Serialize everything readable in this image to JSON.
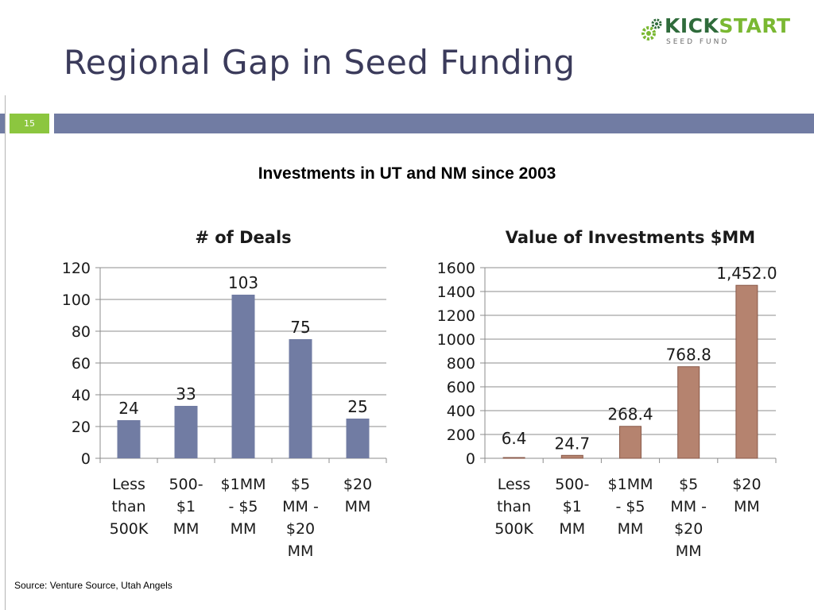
{
  "header": {
    "title": "Regional Gap in Seed Funding",
    "slide_number": "15",
    "logo_text_dark": "KICK",
    "logo_text_light": "START",
    "logo_subtext": "SEED FUND"
  },
  "subtitle": "Investments in UT and NM since 2003",
  "source": "Source: Venture Source, Utah Angels",
  "colors": {
    "deals_bar": "#717ca3",
    "value_bar": "#b5836f",
    "band": "#717ca3",
    "slide_number_bg": "#8cc63f"
  },
  "chart_data": [
    {
      "type": "bar",
      "title": "# of Deals",
      "categories": [
        [
          "Less",
          "than",
          "500K"
        ],
        [
          "500-",
          "$1",
          "MM"
        ],
        [
          "$1MM",
          "- $5",
          "MM"
        ],
        [
          "$5",
          "MM -",
          "$20",
          "MM"
        ],
        [
          "$20",
          "MM"
        ]
      ],
      "values": [
        24,
        33,
        103,
        75,
        25
      ],
      "data_labels": [
        "24",
        "33",
        "103",
        "75",
        "25"
      ],
      "ylim": [
        0,
        120
      ],
      "yticks": [
        0,
        20,
        40,
        60,
        80,
        100,
        120
      ],
      "ytick_labels": [
        "0",
        "20",
        "40",
        "60",
        "80",
        "100",
        "120"
      ],
      "grid": true,
      "xlabel": "",
      "ylabel": ""
    },
    {
      "type": "bar",
      "title": "Value of Investments $MM",
      "categories": [
        [
          "Less",
          "than",
          "500K"
        ],
        [
          "500-",
          "$1",
          "MM"
        ],
        [
          "$1MM",
          "- $5",
          "MM"
        ],
        [
          "$5",
          "MM -",
          "$20",
          "MM"
        ],
        [
          "$20",
          "MM"
        ]
      ],
      "values": [
        6.4,
        24.7,
        268.4,
        768.8,
        1452.0
      ],
      "data_labels": [
        "6.4",
        "24.7",
        "268.4",
        "768.8",
        "1,452.0"
      ],
      "ylim": [
        0,
        1600
      ],
      "yticks": [
        0,
        200,
        400,
        600,
        800,
        1000,
        1200,
        1400,
        1600
      ],
      "ytick_labels": [
        "0",
        "200",
        "400",
        "600",
        "800",
        "1000",
        "1200",
        "1400",
        "1600"
      ],
      "grid": true,
      "xlabel": "",
      "ylabel": ""
    }
  ]
}
